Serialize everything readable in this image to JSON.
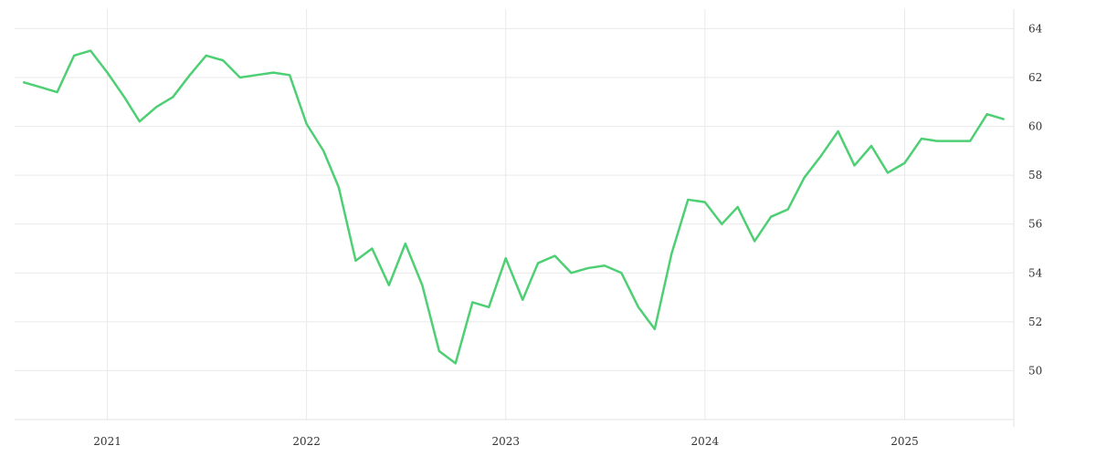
{
  "chart_data": {
    "type": "line",
    "x_axis_type": "date",
    "xlim": [
      "2020-07-15",
      "2025-07-20"
    ],
    "ylim": [
      48,
      64.8
    ],
    "x_ticks": [
      {
        "label": "2021",
        "date": "2021-01-01"
      },
      {
        "label": "2022",
        "date": "2022-01-01"
      },
      {
        "label": "2023",
        "date": "2023-01-01"
      },
      {
        "label": "2024",
        "date": "2024-01-01"
      },
      {
        "label": "2025",
        "date": "2025-01-01"
      }
    ],
    "y_ticks": [
      50,
      52,
      54,
      56,
      58,
      60,
      62,
      64
    ],
    "y_axis_position": "right",
    "grid": true,
    "legend": "none",
    "series": [
      {
        "color": "#4ecf74",
        "x": [
          "2020-08-01",
          "2020-09-01",
          "2020-10-01",
          "2020-11-01",
          "2020-12-01",
          "2021-01-01",
          "2021-02-01",
          "2021-03-01",
          "2021-04-01",
          "2021-05-01",
          "2021-06-01",
          "2021-07-01",
          "2021-08-01",
          "2021-09-01",
          "2021-10-01",
          "2021-11-01",
          "2021-12-01",
          "2022-01-01",
          "2022-02-01",
          "2022-03-01",
          "2022-04-01",
          "2022-05-01",
          "2022-06-01",
          "2022-07-01",
          "2022-08-01",
          "2022-09-01",
          "2022-10-01",
          "2022-11-01",
          "2022-12-01",
          "2023-01-01",
          "2023-02-01",
          "2023-03-01",
          "2023-04-01",
          "2023-05-01",
          "2023-06-01",
          "2023-07-01",
          "2023-08-01",
          "2023-09-01",
          "2023-10-01",
          "2023-11-01",
          "2023-12-01",
          "2024-01-01",
          "2024-02-01",
          "2024-03-01",
          "2024-04-01",
          "2024-05-01",
          "2024-06-01",
          "2024-07-01",
          "2024-08-01",
          "2024-09-01",
          "2024-10-01",
          "2024-11-01",
          "2024-12-01",
          "2025-01-01",
          "2025-02-01",
          "2025-03-01",
          "2025-04-01",
          "2025-05-01",
          "2025-06-01",
          "2025-07-01"
        ],
        "y": [
          61.8,
          61.6,
          61.4,
          62.9,
          63.1,
          62.2,
          61.2,
          60.2,
          60.8,
          61.2,
          62.1,
          62.9,
          62.7,
          62.0,
          62.1,
          62.2,
          62.1,
          60.1,
          59.0,
          57.5,
          54.5,
          55.0,
          53.5,
          55.2,
          53.5,
          50.8,
          50.3,
          52.8,
          52.6,
          54.6,
          52.9,
          54.4,
          54.7,
          54.0,
          54.2,
          54.3,
          54.0,
          52.6,
          51.7,
          54.8,
          57.0,
          56.9,
          56.0,
          56.7,
          55.3,
          56.3,
          56.6,
          57.9,
          58.8,
          59.8,
          58.4,
          59.2,
          58.1,
          58.5,
          59.5,
          59.4,
          59.4,
          59.4,
          60.5,
          60.3
        ]
      }
    ]
  }
}
